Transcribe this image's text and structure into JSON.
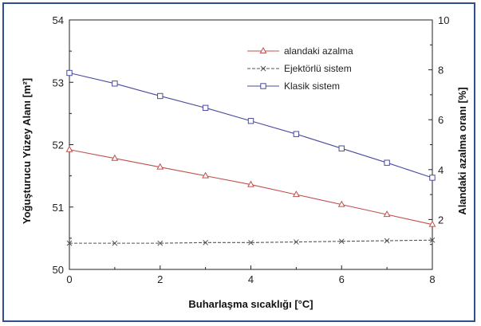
{
  "chart_data": {
    "type": "line",
    "title": "",
    "xlabel": "Buharlaşma sıcaklığı [°C]",
    "ylabel_left": "Yoğuşturucu Yüzey Alanı [m²]",
    "ylabel_right": "Alandaki azalma oranı [%]",
    "xlim": [
      0,
      8
    ],
    "ylim_left": [
      50,
      54
    ],
    "ylim_right": [
      0,
      10
    ],
    "x_ticks": [
      "0",
      "2",
      "4",
      "6",
      "8"
    ],
    "y_left_ticks": [
      "50",
      "51",
      "52",
      "53",
      "54"
    ],
    "y_right_ticks": [
      "2",
      "4",
      "6",
      "8",
      "10"
    ],
    "grid": false,
    "legend_position": "top-right",
    "x": [
      0,
      1,
      2,
      3,
      4,
      5,
      6,
      7,
      8
    ],
    "series": [
      {
        "name": "alandaki azalma",
        "axis": "right",
        "color": "#c0504d",
        "marker": "triangle",
        "line": "solid",
        "values": [
          4.8,
          4.45,
          4.1,
          3.75,
          3.4,
          3.0,
          2.6,
          2.2,
          1.8
        ]
      },
      {
        "name": "Ejektörlü sistem",
        "axis": "left",
        "color": "#555555",
        "marker": "x",
        "line": "dashed",
        "values": [
          50.42,
          50.42,
          50.42,
          50.43,
          50.43,
          50.44,
          50.45,
          50.46,
          50.47
        ]
      },
      {
        "name": "Klasik sistem",
        "axis": "left",
        "color": "#4a4aa0",
        "marker": "square",
        "line": "solid",
        "values": [
          53.15,
          52.98,
          52.78,
          52.59,
          52.38,
          52.17,
          51.94,
          51.71,
          51.47
        ]
      }
    ]
  }
}
